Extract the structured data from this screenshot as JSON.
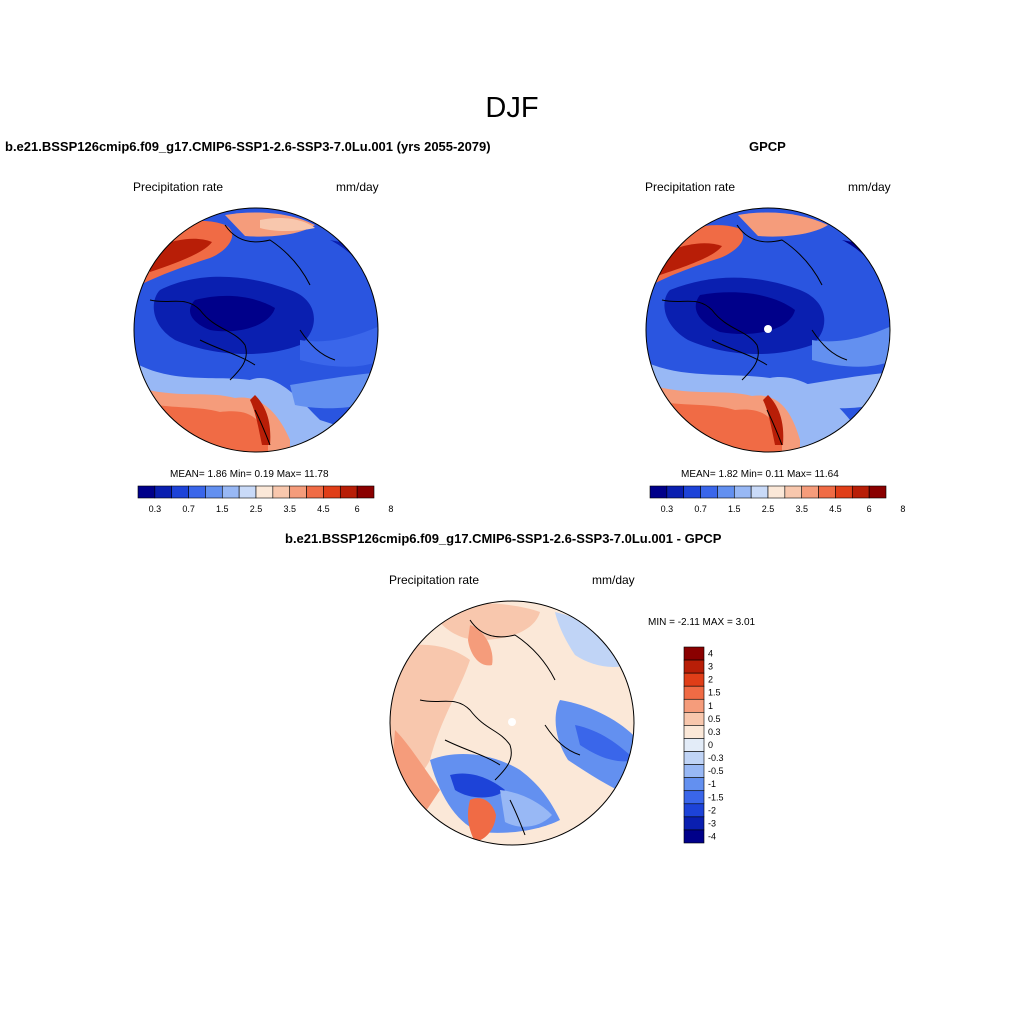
{
  "season": "DJF",
  "panels": [
    {
      "title": "b.e21.BSSP126cmip6.f09_g17.CMIP6-SSP1-2.6-SSP3-7.0Lu.001 (yrs 2055-2079)",
      "left_label": "Precipitation rate",
      "right_label": "mm/day",
      "stats": "MEAN=   1.86  Min=    0.19  Max=  11.78"
    },
    {
      "title": "GPCP",
      "left_label": "Precipitation rate",
      "right_label": "mm/day",
      "stats": "MEAN=   1.82  Min=    0.11  Max=  11.64"
    },
    {
      "title": "b.e21.BSSP126cmip6.f09_g17.CMIP6-SSP1-2.6-SSP3-7.0Lu.001 - GPCP",
      "left_label": "Precipitation rate",
      "right_label": "mm/day",
      "stats": "MIN =  -2.11 MAX =   3.01"
    }
  ],
  "colorbar_abs": {
    "colors": [
      "#00008a",
      "#0a1fb0",
      "#1d43d8",
      "#3a66ea",
      "#6390f0",
      "#98b8f5",
      "#c9daf8",
      "#fbe8d8",
      "#f8c7ad",
      "#f59c7b",
      "#f06b45",
      "#e03e18",
      "#b81e07",
      "#8a0000"
    ],
    "tick_labels": [
      "0.3",
      "0.7",
      "1.5",
      "2.5",
      "3.5",
      "4.5",
      "6",
      "8"
    ]
  },
  "colorbar_diff": {
    "colors": [
      "#8a0000",
      "#b81e07",
      "#e03e18",
      "#f06b45",
      "#f59c7b",
      "#f8c7ad",
      "#fbe8d8",
      "#e3ecf8",
      "#c0d4f6",
      "#98b8f5",
      "#6390f0",
      "#3a66ea",
      "#1d43d8",
      "#0a1fb0",
      "#00008a"
    ],
    "tick_labels": [
      "4",
      "3",
      "2",
      "1.5",
      "1",
      "0.5",
      "0.3",
      "0",
      "-0.3",
      "-0.5",
      "-1",
      "-1.5",
      "-2",
      "-3",
      "-4"
    ]
  }
}
